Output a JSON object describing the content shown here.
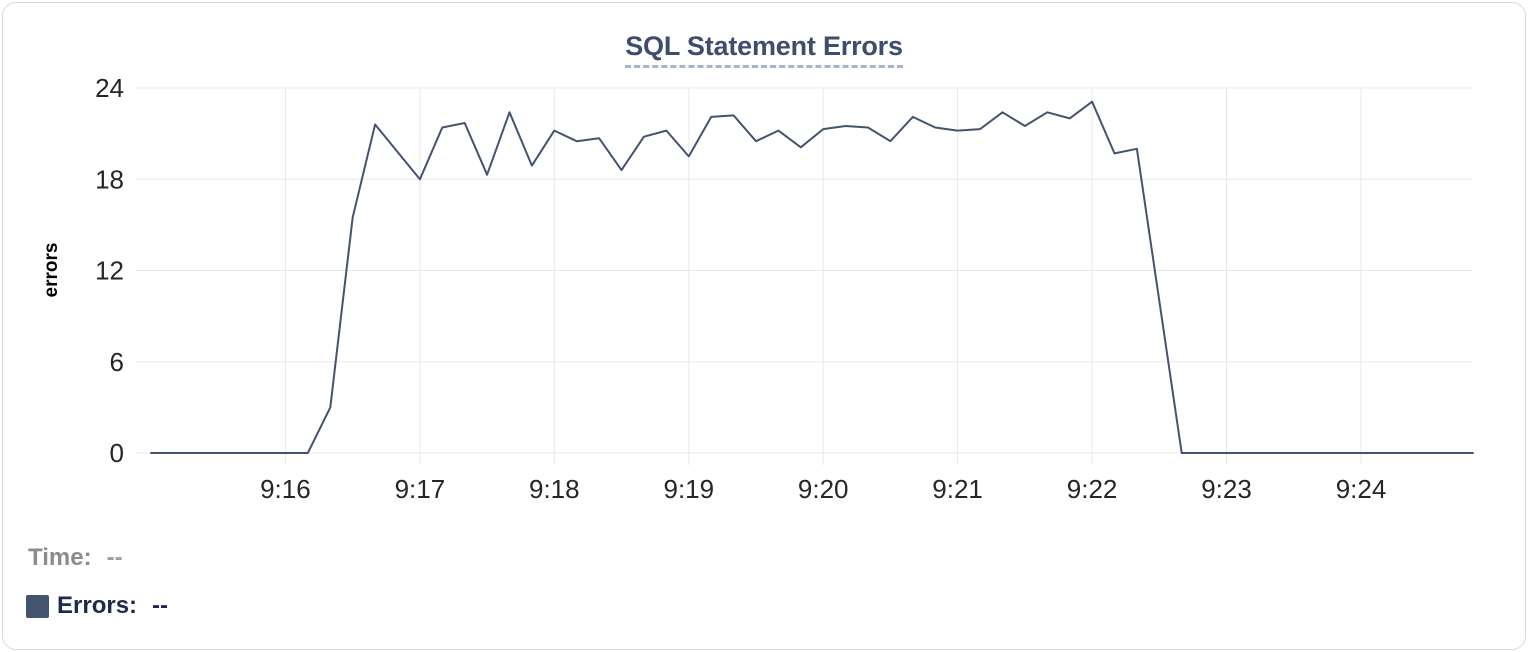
{
  "colors": {
    "accent_navy": "#44546e",
    "title_blue": "#3e4d6d",
    "underline_blue": "#a9b3c9",
    "grid": "#e8e8e8",
    "tick_text": "#262626",
    "muted_text": "#8c8c8c",
    "muted_value": "#9d9d9d",
    "dark_text": "#1c2b4d",
    "card_border": "#d9d9d9"
  },
  "chart_data": {
    "type": "line",
    "title": "SQL Statement Errors",
    "xlabel": "",
    "ylabel": "errors",
    "ylim": [
      0,
      24
    ],
    "y_ticks": [
      0,
      6,
      12,
      18,
      24
    ],
    "grid": true,
    "grid_color": "#e8e8e8",
    "line_color": "#44546e",
    "legend_position": "bottom-left",
    "x_start_time": "9:15:00",
    "x_end_time": "9:24:50",
    "sample_interval_seconds": 10,
    "x_domain_seconds": [
      0,
      590
    ],
    "x_ticks": [
      {
        "t": 60,
        "label": "9:16"
      },
      {
        "t": 120,
        "label": "9:17"
      },
      {
        "t": 180,
        "label": "9:18"
      },
      {
        "t": 240,
        "label": "9:19"
      },
      {
        "t": 300,
        "label": "9:20"
      },
      {
        "t": 360,
        "label": "9:21"
      },
      {
        "t": 420,
        "label": "9:22"
      },
      {
        "t": 480,
        "label": "9:23"
      },
      {
        "t": 540,
        "label": "9:24"
      }
    ],
    "series": [
      {
        "name": "Errors",
        "color": "#44546e",
        "values": [
          0,
          0,
          0,
          0,
          0,
          0,
          0,
          0,
          3,
          15.5,
          21.6,
          19.8,
          18,
          21.4,
          21.7,
          18.3,
          22.4,
          18.9,
          21.2,
          20.5,
          20.7,
          18.6,
          20.8,
          21.2,
          19.5,
          22.1,
          22.2,
          20.5,
          21.2,
          20.1,
          21.3,
          21.5,
          21.4,
          20.5,
          22.1,
          21.4,
          21.2,
          21.3,
          22.4,
          21.5,
          22.4,
          22,
          23.1,
          19.7,
          20,
          10,
          0,
          0,
          0,
          0,
          0,
          0,
          0,
          0,
          0,
          0,
          0,
          0,
          0,
          0
        ]
      }
    ]
  },
  "legend": {
    "time_label": "Time:",
    "time_value": "--",
    "errors_label": "Errors:",
    "errors_value": "--",
    "swatch_color": "#44546e"
  }
}
